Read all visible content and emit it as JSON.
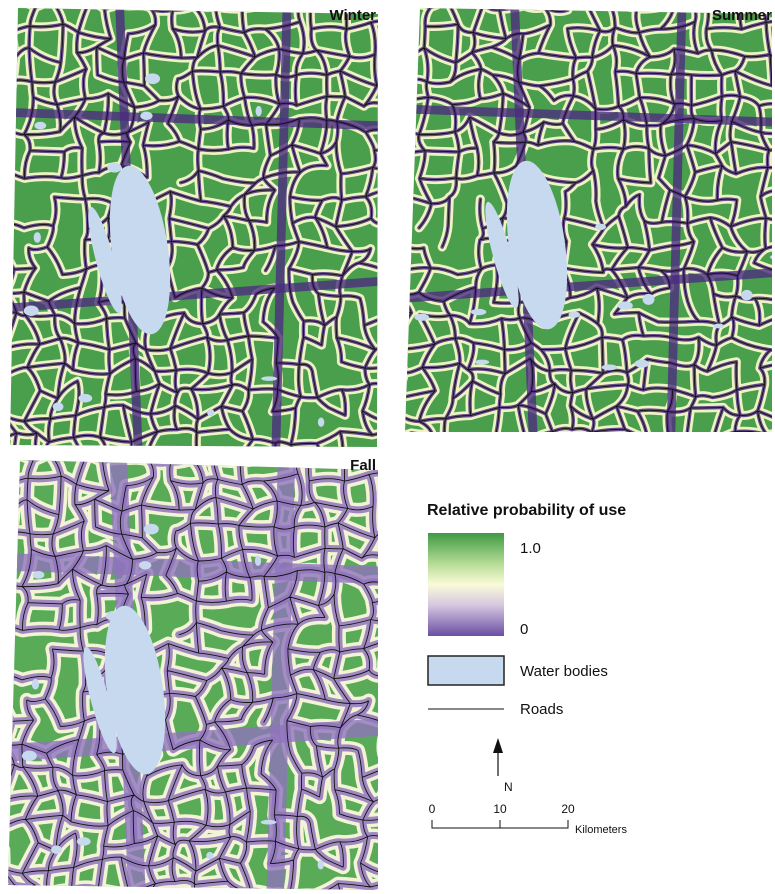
{
  "panels": [
    {
      "title": "Winter"
    },
    {
      "title": "Summer"
    },
    {
      "title": "Fall"
    }
  ],
  "legend": {
    "title": "Relative probability of use",
    "high_label": "1.0",
    "low_label": "0",
    "water_label": "Water bodies",
    "roads_label": "Roads"
  },
  "north_label": "N",
  "scale_bar": {
    "tick_labels": [
      "0",
      "10",
      "20"
    ],
    "unit": "Kilometers"
  }
}
